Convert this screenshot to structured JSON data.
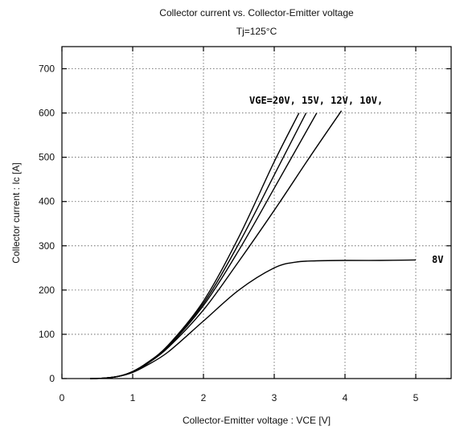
{
  "chart_data": {
    "type": "line",
    "title": "Collector current  vs.  Collector-Emitter  voltage",
    "subtitle": "Tj=125°C",
    "xlabel": "Collector-Emitter voltage : VCE [V]",
    "ylabel": "Collector current : Ic [A]",
    "xlim": [
      0,
      5.5
    ],
    "ylim": [
      0,
      750
    ],
    "x_ticks": [
      0,
      1,
      2,
      3,
      4,
      5
    ],
    "y_ticks": [
      0,
      100,
      200,
      300,
      400,
      500,
      600,
      700
    ],
    "grid": true,
    "annotations": {
      "vge_high": "VGE=20V, 15V, 12V, 10V,",
      "vge_low": "8V"
    },
    "series": [
      {
        "vge": "20V",
        "x": [
          0.4,
          0.6,
          0.8,
          1.0,
          1.2,
          1.5,
          2.0,
          2.5,
          3.0,
          3.35
        ],
        "y": [
          0,
          1,
          5,
          16,
          35,
          75,
          175,
          320,
          490,
          600
        ]
      },
      {
        "vge": "15V",
        "x": [
          0.4,
          0.6,
          0.8,
          1.0,
          1.2,
          1.5,
          2.0,
          2.5,
          3.0,
          3.45
        ],
        "y": [
          0,
          1,
          5,
          16,
          35,
          75,
          170,
          305,
          460,
          600
        ]
      },
      {
        "vge": "12V",
        "x": [
          0.4,
          0.6,
          0.8,
          1.0,
          1.2,
          1.5,
          2.0,
          2.5,
          3.0,
          3.6
        ],
        "y": [
          0,
          1,
          5,
          16,
          35,
          72,
          165,
          290,
          430,
          600
        ]
      },
      {
        "vge": "10V",
        "x": [
          0.4,
          0.6,
          0.8,
          1.0,
          1.2,
          1.5,
          2.0,
          2.5,
          3.0,
          3.5,
          3.95
        ],
        "y": [
          0,
          1,
          5,
          15,
          33,
          70,
          155,
          265,
          380,
          500,
          605
        ]
      },
      {
        "vge": "8V",
        "x": [
          0.4,
          0.6,
          0.8,
          1.0,
          1.2,
          1.5,
          2.0,
          2.5,
          3.0,
          3.3,
          3.6,
          4.0,
          4.5,
          5.0
        ],
        "y": [
          0,
          1,
          5,
          14,
          30,
          60,
          130,
          200,
          250,
          263,
          266,
          267,
          267,
          268
        ]
      }
    ]
  }
}
